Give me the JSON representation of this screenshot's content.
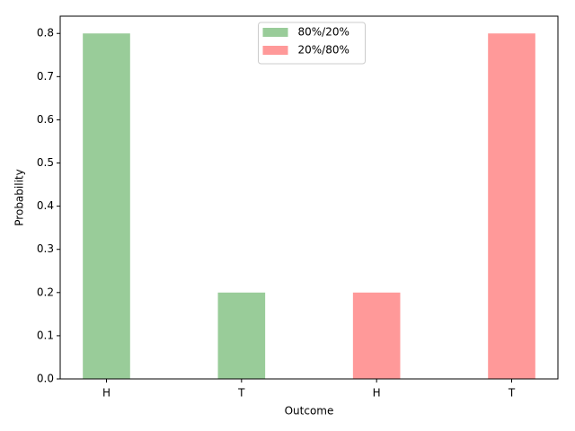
{
  "chart_data": {
    "type": "bar",
    "xlabel": "Outcome",
    "ylabel": "Probability",
    "categories": [
      "H",
      "T",
      "H",
      "T"
    ],
    "series": [
      {
        "name": "80%/20%",
        "color": "#99cc99",
        "values": [
          0.8,
          0.2,
          null,
          null
        ]
      },
      {
        "name": "20%/80%",
        "color": "#ff9999",
        "values": [
          null,
          null,
          0.2,
          0.8
        ]
      }
    ],
    "ylim": [
      0,
      0.84
    ],
    "yticks": [
      {
        "value": 0,
        "label": "0.0"
      },
      0.1,
      0.2,
      0.3,
      0.4,
      0.5,
      0.6,
      0.7,
      0.8
    ],
    "legend": "upper center",
    "grid": false
  }
}
